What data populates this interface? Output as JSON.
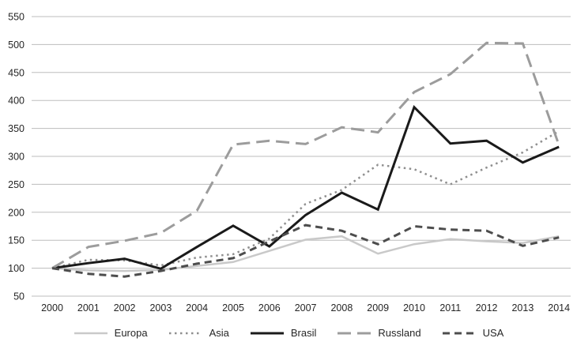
{
  "chart_data": {
    "type": "line",
    "x": [
      2000,
      2001,
      2002,
      2003,
      2004,
      2005,
      2006,
      2007,
      2008,
      2009,
      2010,
      2011,
      2012,
      2013,
      2014
    ],
    "series": [
      {
        "name": "Europa",
        "values": [
          100,
          96,
          95,
          97,
          104,
          111,
          131,
          151,
          157,
          126,
          143,
          152,
          148,
          145,
          157
        ],
        "color": "#c9c9c9",
        "dash": "solid",
        "width": 2.5
      },
      {
        "name": "Asia",
        "values": [
          100,
          115,
          114,
          105,
          119,
          125,
          153,
          215,
          240,
          285,
          277,
          250,
          280,
          307,
          345
        ],
        "color": "#8f8f8f",
        "dash": "dotted",
        "width": 2.5
      },
      {
        "name": "Brasil",
        "values": [
          100,
          109,
          117,
          99,
          138,
          176,
          139,
          195,
          235,
          205,
          388,
          323,
          328,
          289,
          317
        ],
        "color": "#1a1a1a",
        "dash": "solid",
        "width": 3
      },
      {
        "name": "Russland",
        "values": [
          100,
          138,
          149,
          163,
          203,
          321,
          328,
          322,
          352,
          343,
          415,
          447,
          503,
          502,
          320
        ],
        "color": "#9c9c9c",
        "dash": "longdash",
        "width": 3
      },
      {
        "name": "USA",
        "values": [
          100,
          90,
          85,
          95,
          108,
          118,
          148,
          177,
          167,
          143,
          175,
          169,
          167,
          140,
          155
        ],
        "color": "#4d4d4d",
        "dash": "dash",
        "width": 3
      }
    ],
    "title": "",
    "xlabel": "",
    "ylabel": "",
    "ylim": [
      50,
      550
    ],
    "y_ticks": [
      "50",
      "100",
      "150",
      "200",
      "250",
      "300",
      "350",
      "400",
      "450",
      "500",
      "550"
    ],
    "x_ticks": [
      "2000",
      "2001",
      "2002",
      "2003",
      "2004",
      "2005",
      "2006",
      "2007",
      "2008",
      "2009",
      "2010",
      "2011",
      "2012",
      "2013",
      "2014"
    ],
    "grid": true,
    "legend_position": "bottom",
    "legend_entries": [
      "Europa",
      "Asia",
      "Brasil",
      "Russland",
      "USA"
    ]
  },
  "colors": {
    "gridline": "#bdbdbd",
    "tick_text": "#262626",
    "background": "#ffffff"
  }
}
